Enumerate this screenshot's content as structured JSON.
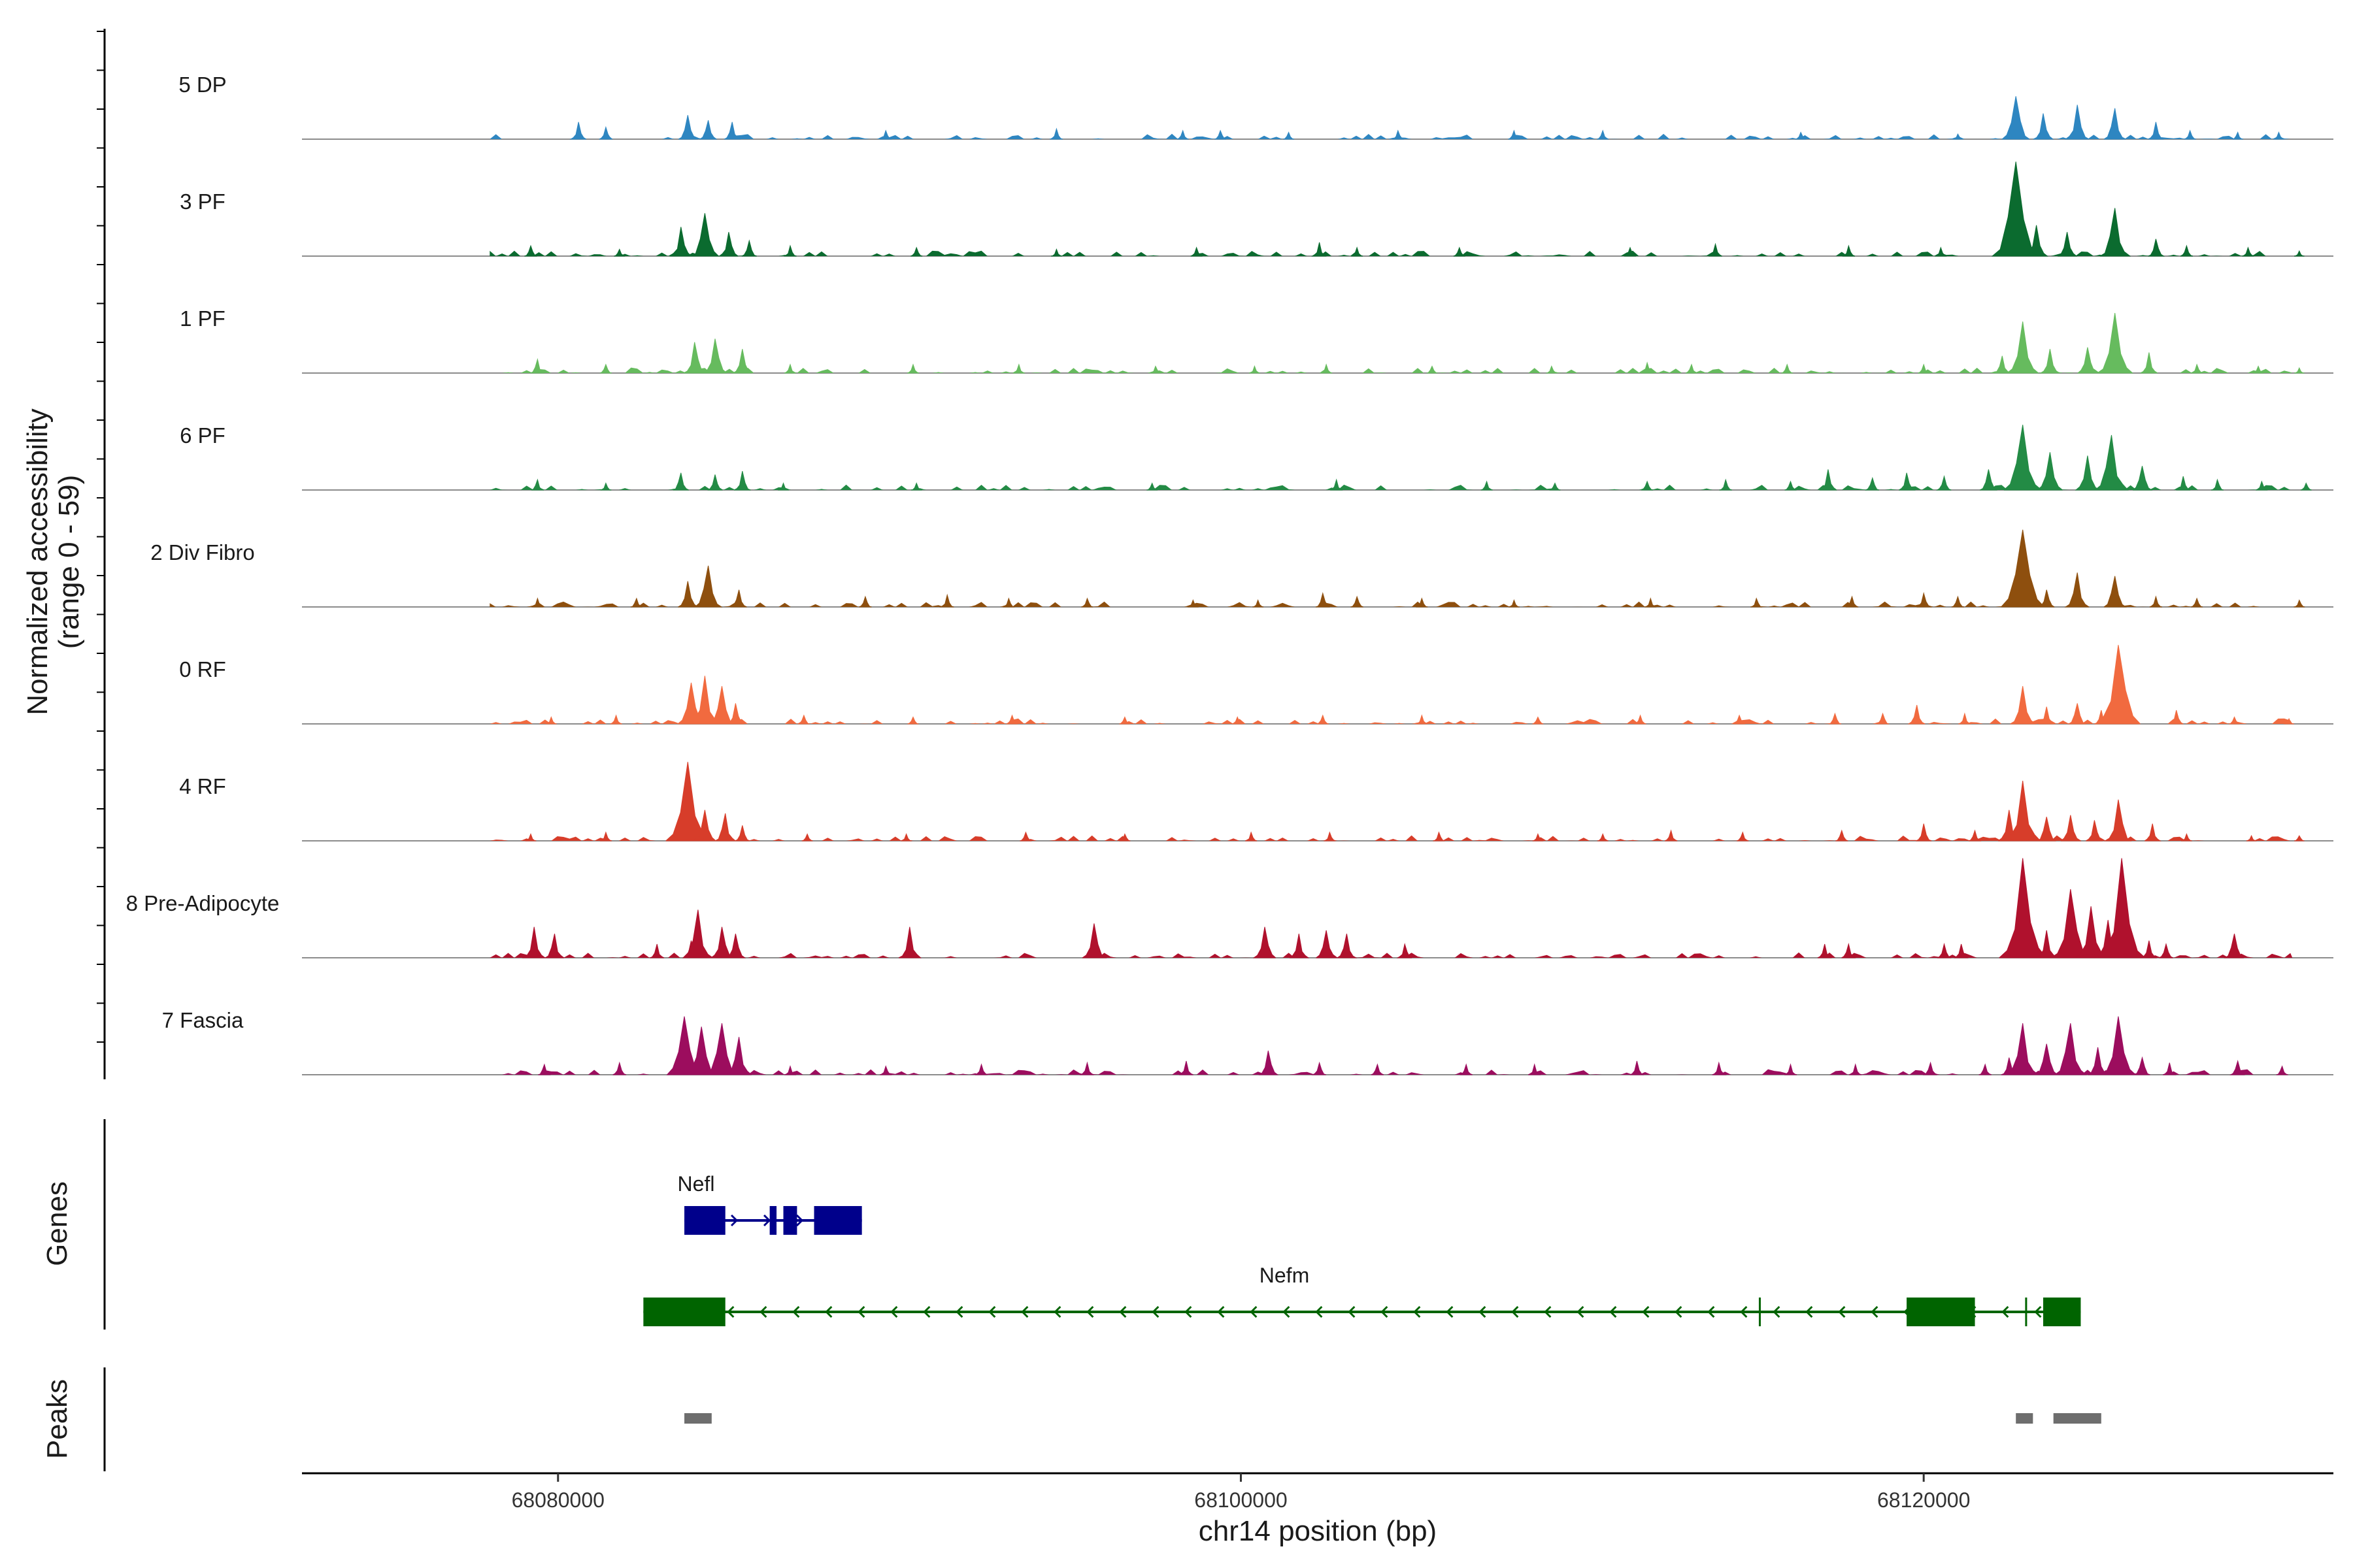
{
  "chart_data": {
    "type": "genome-track",
    "chromosome": "chr14",
    "xlabel": "chr14 position (bp)",
    "ylabel_line1": "Normalized accessibility",
    "ylabel_line2": "(range 0 - 59)",
    "y_range": [
      0,
      59
    ],
    "xlim": [
      68072500,
      68132000
    ],
    "x_ticks": [
      68080000,
      68100000,
      68120000
    ],
    "x_tick_labels": [
      "68080000",
      "68100000",
      "68120000"
    ],
    "tracks": [
      {
        "name": "5 DP",
        "color": "#2e86c1",
        "peaks": [
          [
            68080600,
            10
          ],
          [
            68081400,
            7
          ],
          [
            68083800,
            14
          ],
          [
            68084400,
            11
          ],
          [
            68085100,
            10
          ],
          [
            68089600,
            5
          ],
          [
            68094600,
            6
          ],
          [
            68098300,
            5
          ],
          [
            68099400,
            5
          ],
          [
            68101400,
            4
          ],
          [
            68104600,
            5
          ],
          [
            68108000,
            5
          ],
          [
            68110600,
            5
          ],
          [
            68116400,
            4
          ],
          [
            68121000,
            3
          ],
          [
            68122700,
            25
          ],
          [
            68123500,
            15
          ],
          [
            68124500,
            20
          ],
          [
            68125600,
            18
          ],
          [
            68126800,
            10
          ],
          [
            68127800,
            5
          ],
          [
            68129200,
            4
          ],
          [
            68130400,
            4
          ]
        ]
      },
      {
        "name": "3 PF",
        "color": "#0b6b2f",
        "peaks": [
          [
            68079200,
            6
          ],
          [
            68081800,
            4
          ],
          [
            68083600,
            17
          ],
          [
            68084300,
            25
          ],
          [
            68085000,
            14
          ],
          [
            68085600,
            9
          ],
          [
            68086800,
            6
          ],
          [
            68090500,
            5
          ],
          [
            68094600,
            4
          ],
          [
            68098700,
            5
          ],
          [
            68102300,
            8
          ],
          [
            68103400,
            5
          ],
          [
            68106400,
            5
          ],
          [
            68111400,
            5
          ],
          [
            68113900,
            7
          ],
          [
            68117800,
            6
          ],
          [
            68120500,
            5
          ],
          [
            68122700,
            55
          ],
          [
            68123300,
            18
          ],
          [
            68124200,
            14
          ],
          [
            68125600,
            28
          ],
          [
            68126800,
            10
          ],
          [
            68127700,
            6
          ],
          [
            68129500,
            5
          ],
          [
            68131000,
            3
          ]
        ]
      },
      {
        "name": "1 PF",
        "color": "#66bb5e",
        "peaks": [
          [
            68079400,
            8
          ],
          [
            68081400,
            5
          ],
          [
            68084000,
            18
          ],
          [
            68084600,
            20
          ],
          [
            68085400,
            14
          ],
          [
            68086800,
            5
          ],
          [
            68090400,
            5
          ],
          [
            68093500,
            5
          ],
          [
            68097500,
            4
          ],
          [
            68100400,
            4
          ],
          [
            68102500,
            5
          ],
          [
            68105600,
            4
          ],
          [
            68109100,
            4
          ],
          [
            68111900,
            6
          ],
          [
            68113200,
            5
          ],
          [
            68116000,
            5
          ],
          [
            68120000,
            5
          ],
          [
            68122300,
            10
          ],
          [
            68122900,
            30
          ],
          [
            68123700,
            14
          ],
          [
            68124800,
            15
          ],
          [
            68125600,
            35
          ],
          [
            68126600,
            12
          ],
          [
            68128000,
            5
          ],
          [
            68129800,
            4
          ],
          [
            68131000,
            3
          ]
        ]
      },
      {
        "name": "6 PF",
        "color": "#238b45",
        "peaks": [
          [
            68079400,
            6
          ],
          [
            68081400,
            4
          ],
          [
            68083600,
            10
          ],
          [
            68084600,
            9
          ],
          [
            68085400,
            11
          ],
          [
            68086600,
            4
          ],
          [
            68090500,
            4
          ],
          [
            68097400,
            4
          ],
          [
            68102800,
            6
          ],
          [
            68107200,
            5
          ],
          [
            68109200,
            4
          ],
          [
            68111900,
            5
          ],
          [
            68114200,
            6
          ],
          [
            68116100,
            5
          ],
          [
            68117200,
            12
          ],
          [
            68118500,
            7
          ],
          [
            68119500,
            10
          ],
          [
            68120600,
            8
          ],
          [
            68121900,
            12
          ],
          [
            68122900,
            38
          ],
          [
            68123700,
            22
          ],
          [
            68124800,
            20
          ],
          [
            68125500,
            32
          ],
          [
            68126400,
            14
          ],
          [
            68127600,
            8
          ],
          [
            68128600,
            6
          ],
          [
            68129900,
            5
          ],
          [
            68131200,
            4
          ]
        ]
      },
      {
        "name": "2 Div Fibro",
        "color": "#8e4f0e",
        "peaks": [
          [
            68079400,
            5
          ],
          [
            68082300,
            5
          ],
          [
            68083800,
            15
          ],
          [
            68084400,
            24
          ],
          [
            68085300,
            10
          ],
          [
            68089000,
            6
          ],
          [
            68091400,
            7
          ],
          [
            68093200,
            5
          ],
          [
            68095500,
            5
          ],
          [
            68098600,
            4
          ],
          [
            68100500,
            4
          ],
          [
            68102400,
            8
          ],
          [
            68103400,
            6
          ],
          [
            68105300,
            5
          ],
          [
            68108000,
            4
          ],
          [
            68112000,
            5
          ],
          [
            68115100,
            5
          ],
          [
            68117900,
            6
          ],
          [
            68120000,
            8
          ],
          [
            68121000,
            6
          ],
          [
            68122900,
            45
          ],
          [
            68123600,
            10
          ],
          [
            68124500,
            20
          ],
          [
            68125600,
            18
          ],
          [
            68126800,
            6
          ],
          [
            68128000,
            5
          ],
          [
            68131000,
            4
          ]
        ]
      },
      {
        "name": "0 RF",
        "color": "#f16a3f",
        "peaks": [
          [
            68079800,
            4
          ],
          [
            68081700,
            5
          ],
          [
            68083900,
            24
          ],
          [
            68084300,
            28
          ],
          [
            68084800,
            22
          ],
          [
            68085200,
            12
          ],
          [
            68087200,
            5
          ],
          [
            68090400,
            4
          ],
          [
            68093300,
            5
          ],
          [
            68096600,
            4
          ],
          [
            68099900,
            4
          ],
          [
            68102400,
            5
          ],
          [
            68105300,
            5
          ],
          [
            68108700,
            4
          ],
          [
            68111700,
            5
          ],
          [
            68114600,
            5
          ],
          [
            68117400,
            6
          ],
          [
            68118800,
            6
          ],
          [
            68119800,
            11
          ],
          [
            68121200,
            6
          ],
          [
            68122900,
            22
          ],
          [
            68123600,
            10
          ],
          [
            68124500,
            12
          ],
          [
            68125200,
            8
          ],
          [
            68125700,
            46
          ],
          [
            68127400,
            8
          ],
          [
            68129100,
            4
          ],
          [
            68130700,
            3
          ]
        ]
      },
      {
        "name": "4 RF",
        "color": "#d73d2a",
        "peaks": [
          [
            68079200,
            4
          ],
          [
            68081400,
            5
          ],
          [
            68083800,
            46
          ],
          [
            68084300,
            18
          ],
          [
            68084900,
            16
          ],
          [
            68085400,
            9
          ],
          [
            68087300,
            4
          ],
          [
            68090200,
            4
          ],
          [
            68093700,
            5
          ],
          [
            68096600,
            4
          ],
          [
            68100300,
            5
          ],
          [
            68102600,
            5
          ],
          [
            68105800,
            5
          ],
          [
            68108700,
            4
          ],
          [
            68110600,
            4
          ],
          [
            68112600,
            6
          ],
          [
            68114700,
            5
          ],
          [
            68117600,
            6
          ],
          [
            68120000,
            10
          ],
          [
            68121500,
            6
          ],
          [
            68122500,
            18
          ],
          [
            68122900,
            35
          ],
          [
            68123600,
            14
          ],
          [
            68124300,
            15
          ],
          [
            68125000,
            12
          ],
          [
            68125700,
            24
          ],
          [
            68126700,
            10
          ],
          [
            68127700,
            4
          ],
          [
            68129600,
            3
          ],
          [
            68131000,
            3
          ]
        ]
      },
      {
        "name": "8 Pre-Adipocyte",
        "color": "#b0112d",
        "peaks": [
          [
            68079300,
            18
          ],
          [
            68079900,
            14
          ],
          [
            68082900,
            8
          ],
          [
            68083900,
            10
          ],
          [
            68084100,
            28
          ],
          [
            68084800,
            18
          ],
          [
            68085200,
            14
          ],
          [
            68090300,
            18
          ],
          [
            68095700,
            20
          ],
          [
            68100700,
            18
          ],
          [
            68101700,
            14
          ],
          [
            68102500,
            16
          ],
          [
            68103100,
            14
          ],
          [
            68104800,
            8
          ],
          [
            68117100,
            8
          ],
          [
            68117800,
            8
          ],
          [
            68120600,
            8
          ],
          [
            68121100,
            8
          ],
          [
            68122900,
            58
          ],
          [
            68123600,
            16
          ],
          [
            68124300,
            40
          ],
          [
            68124900,
            30
          ],
          [
            68125400,
            22
          ],
          [
            68125800,
            58
          ],
          [
            68126600,
            10
          ],
          [
            68127100,
            8
          ],
          [
            68129100,
            14
          ]
        ]
      },
      {
        "name": "7 Fascia",
        "color": "#9c0d5e",
        "peaks": [
          [
            68079600,
            6
          ],
          [
            68081800,
            7
          ],
          [
            68083700,
            34
          ],
          [
            68084200,
            28
          ],
          [
            68084800,
            30
          ],
          [
            68085300,
            22
          ],
          [
            68086800,
            5
          ],
          [
            68089600,
            5
          ],
          [
            68092400,
            6
          ],
          [
            68095500,
            7
          ],
          [
            68098400,
            8
          ],
          [
            68100800,
            14
          ],
          [
            68102300,
            7
          ],
          [
            68104000,
            6
          ],
          [
            68106600,
            6
          ],
          [
            68108600,
            6
          ],
          [
            68111600,
            8
          ],
          [
            68114000,
            7
          ],
          [
            68116100,
            6
          ],
          [
            68118000,
            6
          ],
          [
            68120200,
            7
          ],
          [
            68121800,
            6
          ],
          [
            68122500,
            10
          ],
          [
            68122900,
            30
          ],
          [
            68123600,
            18
          ],
          [
            68124300,
            30
          ],
          [
            68125100,
            16
          ],
          [
            68125700,
            34
          ],
          [
            68126400,
            10
          ],
          [
            68127200,
            7
          ],
          [
            68129200,
            8
          ],
          [
            68130500,
            5
          ]
        ]
      }
    ],
    "genes": [
      {
        "name": "Nefl",
        "color": "#00008b",
        "strand": "+",
        "start": 68083700,
        "end": 68088900,
        "exons": [
          [
            68083700,
            68084900
          ],
          [
            68086200,
            68086400
          ],
          [
            68086600,
            68087000
          ],
          [
            68087500,
            68088900
          ]
        ],
        "direction_marks": [
          68083600,
          68085500
        ]
      },
      {
        "name": "Nefm",
        "color": "#006400",
        "strand": "-",
        "start": 68082500,
        "end": 68124600,
        "exons": [
          [
            68082500,
            68084900
          ],
          [
            68119500,
            68121500
          ],
          [
            68123500,
            68123550
          ],
          [
            68123500,
            68124600
          ]
        ],
        "intron_ticks": [
          68115200,
          68123000
        ]
      }
    ],
    "peaks_track": [
      [
        68083700,
        68084500
      ],
      [
        68122700,
        68123200
      ],
      [
        68123800,
        68125200
      ]
    ],
    "panel_labels": [
      "Genes",
      "Peaks"
    ]
  }
}
